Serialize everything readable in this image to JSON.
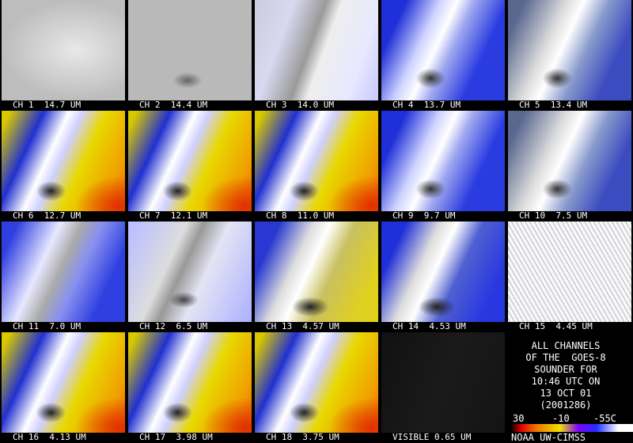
{
  "panels": [
    {
      "label": "CH 1  14.7 UM"
    },
    {
      "label": "CH 2  14.4 UM"
    },
    {
      "label": "CH 3  14.0 UM"
    },
    {
      "label": "CH 4  13.7 UM"
    },
    {
      "label": "CH 5  13.4 UM"
    },
    {
      "label": "CH 6  12.7 UM"
    },
    {
      "label": "CH 7  12.1 UM"
    },
    {
      "label": "CH 8  11.0 UM"
    },
    {
      "label": "CH 9  9.7 UM"
    },
    {
      "label": "CH 10  7.5 UM"
    },
    {
      "label": "CH 11  7.0 UM"
    },
    {
      "label": "CH 12  6.5 UM"
    },
    {
      "label": "CH 13  4.57 UM"
    },
    {
      "label": "CH 14  4.53 UM"
    },
    {
      "label": "CH 15  4.45 UM"
    },
    {
      "label": "CH 16  4.13 UM"
    },
    {
      "label": "CH 17  3.98 UM"
    },
    {
      "label": "CH 18  3.75 UM"
    },
    {
      "label": "VISIBLE 0.65 UM"
    }
  ],
  "info": {
    "lines": [
      "ALL CHANNELS",
      "OF THE  GOES-8",
      "SOUNDER FOR",
      "10:46 UTC ON",
      "13 OCT 01",
      "(2001286)"
    ],
    "colorbar_labels": [
      "30",
      "-10",
      "-55C"
    ],
    "credit": "NOAA UW-CIMSS"
  }
}
